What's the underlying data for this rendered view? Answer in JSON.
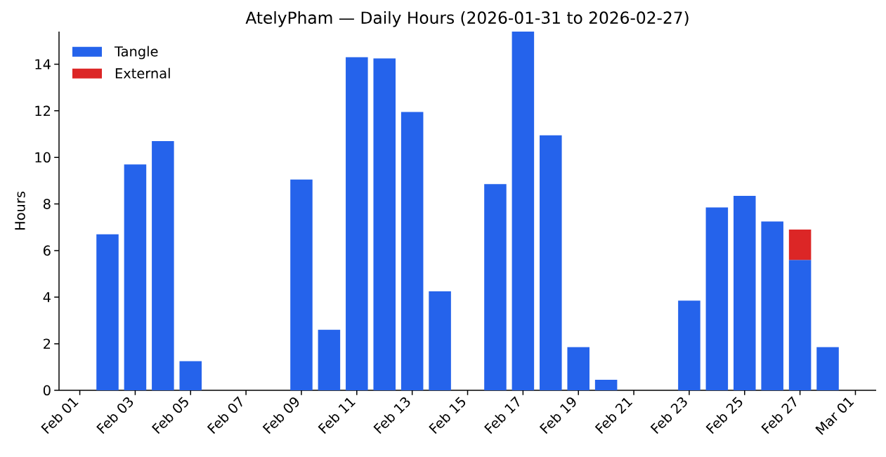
{
  "chart_data": {
    "type": "bar",
    "title": "AtelyPham — Daily Hours (2026-01-31 to 2026-02-27)",
    "ylabel": "Hours",
    "x": [
      "2026-02-02",
      "2026-02-03",
      "2026-02-04",
      "2026-02-05",
      "2026-02-09",
      "2026-02-10",
      "2026-02-11",
      "2026-02-12",
      "2026-02-13",
      "2026-02-14",
      "2026-02-16",
      "2026-02-17",
      "2026-02-18",
      "2026-02-19",
      "2026-02-20",
      "2026-02-23",
      "2026-02-24",
      "2026-02-25",
      "2026-02-26",
      "2026-02-27",
      "2026-02-28"
    ],
    "series": [
      {
        "name": "Tangle",
        "color": "#2563eb",
        "values": [
          6.7,
          9.7,
          10.7,
          1.25,
          9.05,
          2.6,
          14.3,
          14.25,
          11.95,
          4.25,
          8.85,
          15.4,
          10.95,
          1.85,
          0.45,
          3.85,
          7.85,
          8.35,
          7.25,
          5.6,
          1.85
        ]
      },
      {
        "name": "External",
        "color": "#dc2626",
        "values": [
          null,
          null,
          null,
          null,
          null,
          null,
          null,
          null,
          null,
          null,
          null,
          null,
          null,
          null,
          null,
          null,
          null,
          null,
          null,
          1.3,
          null
        ]
      }
    ],
    "stacked": true,
    "xlim": [
      "2026-01-31T06:00",
      "2026-03-01T18:00"
    ],
    "xticks": [
      {
        "value": "2026-02-01",
        "label": "Feb 01"
      },
      {
        "value": "2026-02-03",
        "label": "Feb 03"
      },
      {
        "value": "2026-02-05",
        "label": "Feb 05"
      },
      {
        "value": "2026-02-07",
        "label": "Feb 07"
      },
      {
        "value": "2026-02-09",
        "label": "Feb 09"
      },
      {
        "value": "2026-02-11",
        "label": "Feb 11"
      },
      {
        "value": "2026-02-13",
        "label": "Feb 13"
      },
      {
        "value": "2026-02-15",
        "label": "Feb 15"
      },
      {
        "value": "2026-02-17",
        "label": "Feb 17"
      },
      {
        "value": "2026-02-19",
        "label": "Feb 19"
      },
      {
        "value": "2026-02-21",
        "label": "Feb 21"
      },
      {
        "value": "2026-02-23",
        "label": "Feb 23"
      },
      {
        "value": "2026-02-25",
        "label": "Feb 25"
      },
      {
        "value": "2026-02-27",
        "label": "Feb 27"
      },
      {
        "value": "2026-03-01",
        "label": "Mar 01"
      }
    ],
    "ylim": [
      0,
      15.4
    ],
    "yticks": [
      0,
      2,
      4,
      6,
      8,
      10,
      12,
      14
    ],
    "legend": "top left",
    "grid": false
  }
}
